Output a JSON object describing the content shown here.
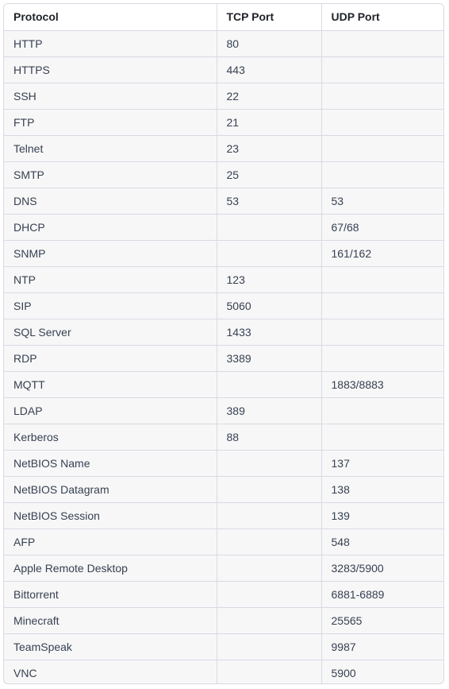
{
  "table": {
    "headers": [
      "Protocol",
      "TCP Port",
      "UDP Port"
    ],
    "rows": [
      [
        "HTTP",
        "80",
        ""
      ],
      [
        "HTTPS",
        "443",
        ""
      ],
      [
        "SSH",
        "22",
        ""
      ],
      [
        "FTP",
        "21",
        ""
      ],
      [
        "Telnet",
        "23",
        ""
      ],
      [
        "SMTP",
        "25",
        ""
      ],
      [
        "DNS",
        "53",
        "53"
      ],
      [
        "DHCP",
        "",
        "67/68"
      ],
      [
        "SNMP",
        "",
        "161/162"
      ],
      [
        "NTP",
        "123",
        ""
      ],
      [
        "SIP",
        "5060",
        ""
      ],
      [
        "SQL Server",
        "1433",
        ""
      ],
      [
        "RDP",
        "3389",
        ""
      ],
      [
        "MQTT",
        "",
        "1883/8883"
      ],
      [
        "LDAP",
        "389",
        ""
      ],
      [
        "Kerberos",
        "88",
        ""
      ],
      [
        "NetBIOS Name",
        "",
        "137"
      ],
      [
        "NetBIOS Datagram",
        "",
        "138"
      ],
      [
        "NetBIOS Session",
        "",
        "139"
      ],
      [
        "AFP",
        "",
        "548"
      ],
      [
        "Apple Remote Desktop",
        "",
        "3283/5900"
      ],
      [
        "Bittorrent",
        "",
        "6881-6889"
      ],
      [
        "Minecraft",
        "",
        "25565"
      ],
      [
        "TeamSpeak",
        "",
        "9987"
      ],
      [
        "VNC",
        "",
        "5900"
      ]
    ]
  }
}
